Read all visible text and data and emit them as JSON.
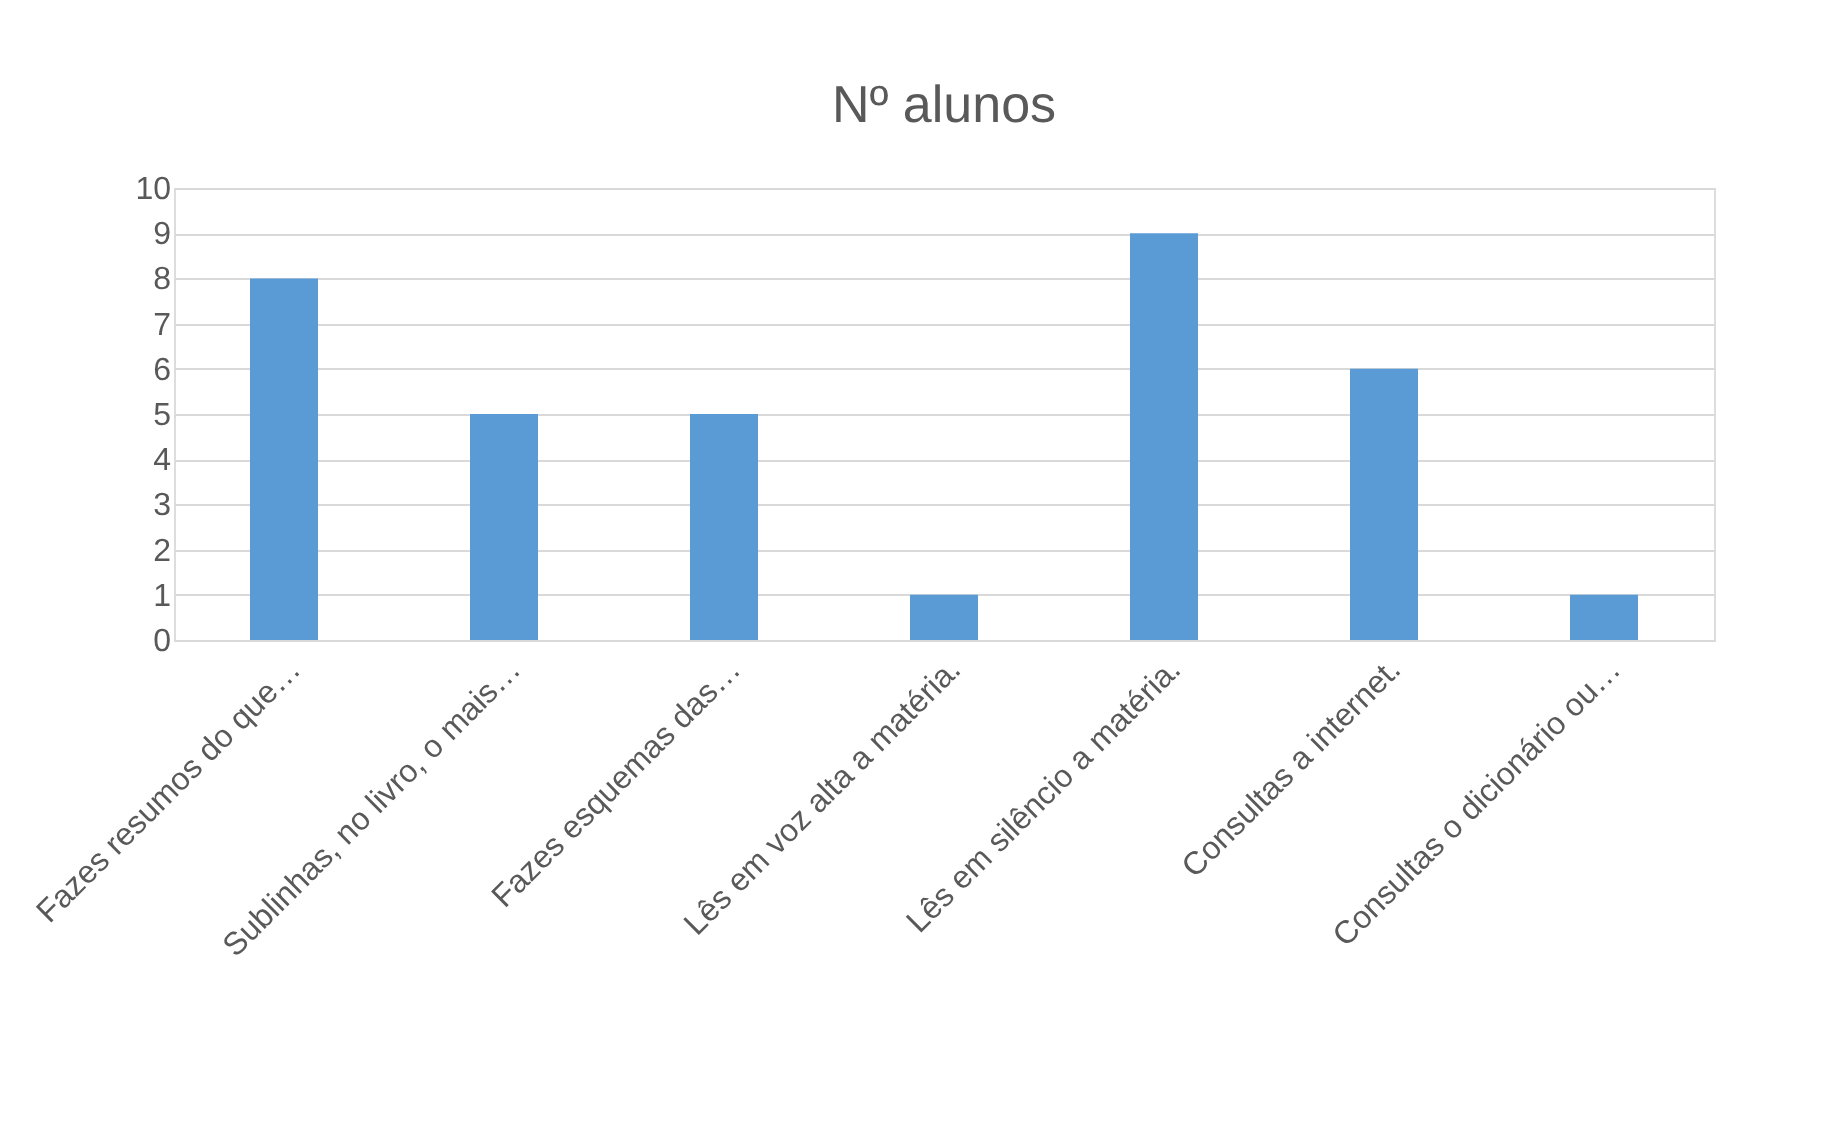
{
  "chart_data": {
    "type": "bar",
    "title": "Nº alunos",
    "categories": [
      "Fazes resumos do que…",
      "Sublinhas, no livro, o mais…",
      "Fazes esquemas das…",
      "Lês em voz alta a matéria.",
      "Lês em silêncio a matéria.",
      "Consultas a internet.",
      "Consultas o dicionário ou…"
    ],
    "values": [
      8,
      5,
      5,
      1,
      9,
      6,
      1
    ],
    "color": "#5b9bd5",
    "ylim": [
      0,
      10
    ],
    "yticks": [
      0,
      1,
      2,
      3,
      4,
      5,
      6,
      7,
      8,
      9,
      10
    ],
    "grid": "y"
  }
}
